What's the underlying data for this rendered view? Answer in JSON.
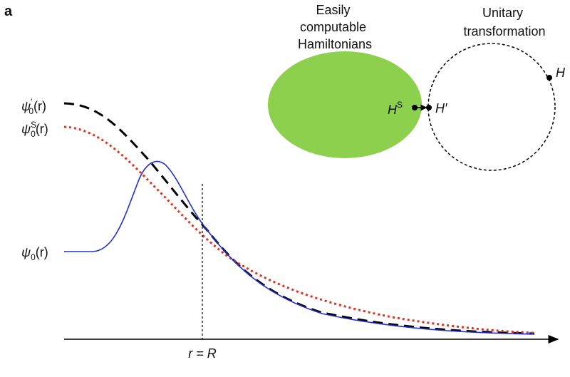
{
  "panel": "a",
  "curve_labels": [
    {
      "symbol": "ψ",
      "sup": "′",
      "sub": "0",
      "arg": "(r)"
    },
    {
      "symbol": "ψ",
      "sup": "S",
      "sub": "0",
      "arg": "(r)"
    },
    {
      "symbol": "ψ",
      "sub": "0",
      "arg": "(r)"
    }
  ],
  "ellipse_label": [
    "Easily",
    "computable",
    "Hamiltonians"
  ],
  "circle_label": [
    "Unitary",
    "transformation"
  ],
  "points": {
    "h_s": {
      "symbol": "H",
      "sup": "S"
    },
    "h_prime": "H′",
    "h": "H"
  },
  "axis_marker": "r = R"
}
